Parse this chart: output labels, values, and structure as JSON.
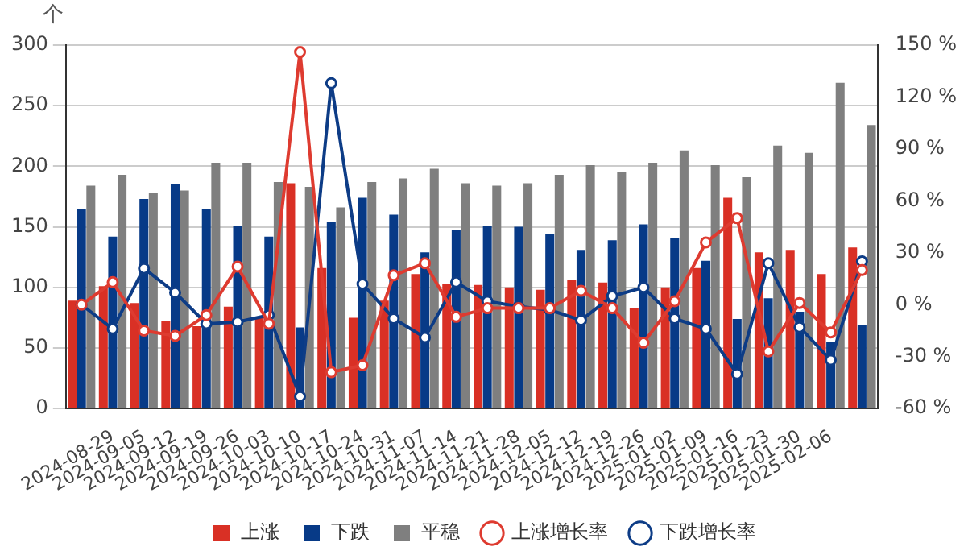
{
  "chart_data": {
    "type": "bar",
    "ylabel": "个",
    "categories": [
      null,
      "2024-08-29",
      "2024-09-05",
      "2024-09-12",
      "2024-09-19",
      "2024-09-26",
      "2024-10-03",
      "2024-10-10",
      "2024-10-17",
      "2024-10-24",
      "2024-10-31",
      "2024-11-07",
      "2024-11-14",
      "2024-11-21",
      "2024-11-28",
      "2024-12-05",
      "2024-12-12",
      "2024-12-19",
      "2024-12-26",
      "2025-01-02",
      "2025-01-09",
      "2025-01-16",
      "2025-01-23",
      "2025-01-30",
      "2025-02-06",
      null
    ],
    "series": [
      {
        "name": "上涨",
        "color": "#d93025",
        "values": [
          89,
          101,
          87,
          72,
          68,
          84,
          75,
          186,
          116,
          75,
          89,
          111,
          103,
          102,
          100,
          98,
          106,
          104,
          83,
          100,
          116,
          174,
          129,
          131,
          111,
          133
        ]
      },
      {
        "name": "下跌",
        "color": "#073a87",
        "values": [
          165,
          142,
          173,
          185,
          165,
          151,
          142,
          67,
          154,
          174,
          160,
          129,
          147,
          151,
          150,
          144,
          131,
          139,
          152,
          141,
          122,
          74,
          91,
          80,
          55,
          69
        ]
      },
      {
        "name": "平稳",
        "color": "#7f7f7f",
        "values": [
          184,
          193,
          178,
          180,
          203,
          203,
          187,
          183,
          166,
          187,
          190,
          198,
          186,
          184,
          186,
          193,
          201,
          195,
          203,
          213,
          201,
          191,
          217,
          211,
          269,
          234
        ]
      },
      {
        "name": "上涨增长率",
        "type": "line",
        "axis": "y2",
        "color": "#de3b30",
        "values": [
          0,
          13,
          -15,
          -18,
          -6,
          22,
          -11,
          146,
          -39,
          -35,
          17,
          24,
          -7,
          -2,
          -2,
          -2,
          8,
          -2,
          -22,
          2,
          36,
          50,
          -27,
          1,
          -16,
          20
        ]
      },
      {
        "name": "下跌增长率",
        "type": "line",
        "axis": "y2",
        "color": "#0d3c86",
        "values": [
          0,
          -14,
          21,
          7,
          -11,
          -10,
          -6,
          -53,
          128,
          12,
          -8,
          -19,
          13,
          2,
          -1,
          -3,
          -9,
          5,
          10,
          -8,
          -14,
          -40,
          24,
          -13,
          -32,
          25
        ]
      }
    ],
    "ylim": [
      0,
      300
    ],
    "yticks": [
      0,
      50,
      100,
      150,
      200,
      250,
      300
    ],
    "y2lim": [
      -60,
      150
    ],
    "y2ticks": [
      {
        "value": -60,
        "label": "-60 %"
      },
      {
        "value": -30,
        "label": "-30 %"
      },
      {
        "value": 0,
        "label": "0 %"
      },
      {
        "value": 30,
        "label": "30 %"
      },
      {
        "value": 60,
        "label": "60 %"
      },
      {
        "value": 90,
        "label": "90 %"
      },
      {
        "value": 120,
        "label": "120 %"
      },
      {
        "value": 150,
        "label": "150 %"
      }
    ],
    "grid": "y",
    "legend": "bottom",
    "marker": "circle",
    "line_style": "solid"
  }
}
